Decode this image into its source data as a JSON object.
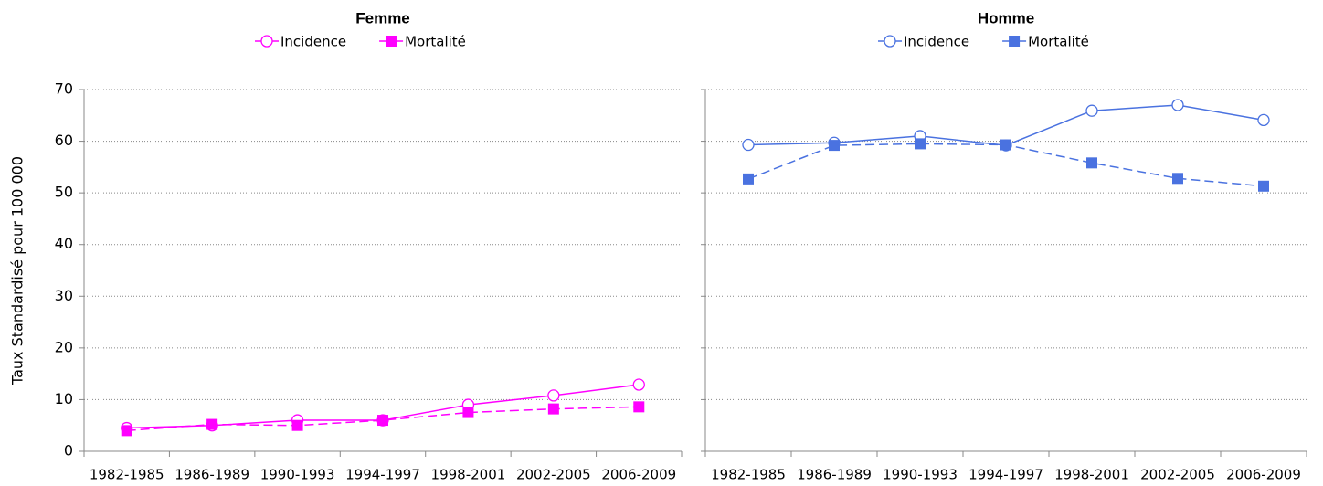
{
  "chart_data": [
    {
      "type": "line",
      "title": "Femme",
      "ylabel": "Taux Standardisé pour 100 000",
      "categories": [
        "1982-1985",
        "1986-1989",
        "1990-1993",
        "1994-1997",
        "1998-2001",
        "2002-2005",
        "2006-2009"
      ],
      "series": [
        {
          "name": "Incidence",
          "color": "#ff00ff",
          "marker": "circle",
          "dashed": false,
          "values": [
            4.5,
            5,
            6,
            6,
            9,
            10.8,
            12.9
          ]
        },
        {
          "name": "Mortalité",
          "color": "#ff00ff",
          "marker": "square",
          "dashed": true,
          "values": [
            4,
            5.2,
            5,
            6,
            7.5,
            8.2,
            8.6
          ]
        }
      ],
      "ylim": [
        0,
        70
      ],
      "yticks": [
        0,
        10,
        20,
        30,
        40,
        50,
        60,
        70
      ],
      "grid": true
    },
    {
      "type": "line",
      "title": "Homme",
      "categories": [
        "1982-1985",
        "1986-1989",
        "1990-1993",
        "1994-1997",
        "1998-2001",
        "2002-2005",
        "2006-2009"
      ],
      "series": [
        {
          "name": "Incidence",
          "color": "#4a72e0",
          "marker": "circle",
          "dashed": false,
          "values": [
            59.3,
            59.7,
            61,
            59.2,
            65.9,
            67,
            64.1
          ]
        },
        {
          "name": "Mortalité",
          "color": "#4a72e0",
          "marker": "square",
          "dashed": true,
          "values": [
            52.7,
            59.2,
            59.5,
            59.3,
            55.8,
            52.8,
            51.3
          ]
        }
      ],
      "ylim": [
        0,
        70
      ],
      "yticks": [
        0,
        10,
        20,
        30,
        40,
        50,
        60,
        70
      ],
      "grid": true
    }
  ]
}
